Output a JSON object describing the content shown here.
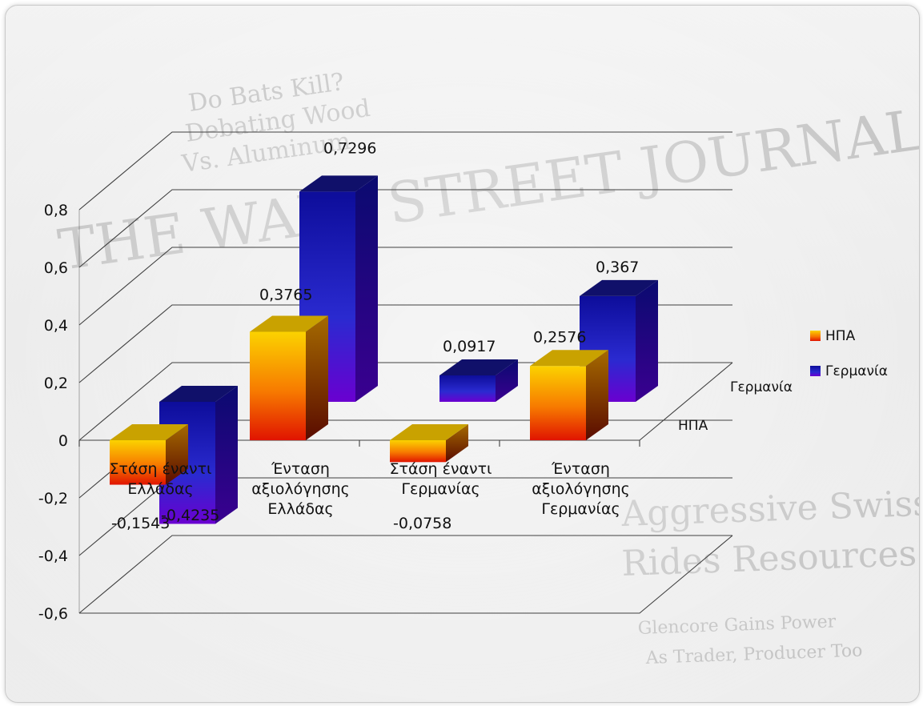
{
  "chart_data": {
    "type": "bar",
    "categories": [
      [
        "Στάση έναντι",
        "Ελλάδας"
      ],
      [
        "Ένταση",
        "αξιολόγησης",
        "Ελλάδας"
      ],
      [
        "Στάση έναντι",
        "Γερμανίας"
      ],
      [
        "Ένταση",
        "αξιολόγησης",
        "Γερμανίας"
      ]
    ],
    "series": [
      {
        "name": "ΗΠΑ",
        "values": [
          -0.1543,
          0.3765,
          -0.0758,
          0.2576
        ],
        "labels": [
          "-0,1543",
          "0,3765",
          "-0,0758",
          "0,2576"
        ],
        "color_top": "#f6d400",
        "color_bottom": "#e01800"
      },
      {
        "name": "Γερμανία",
        "values": [
          -0.4235,
          0.7296,
          0.0917,
          0.367
        ],
        "labels": [
          "-0,4235",
          "0,7296",
          "0,0917",
          "0,367"
        ],
        "color_top": "#1d1db8",
        "color_bottom": "#5a00c8"
      }
    ],
    "depth_axis": [
      "Γερμανία",
      "ΗΠΑ"
    ],
    "y_ticks": [
      "-0,6",
      "-0,4",
      "-0,2",
      "0",
      "0,2",
      "0,4",
      "0,6",
      "0,8"
    ],
    "ylim": [
      -0.6,
      0.8
    ],
    "legend_position": "right",
    "grid": true,
    "style": "3d-column"
  },
  "background_text": [
    "Do Bats Kill?",
    "Debating Wood",
    "Vs. Aluminum",
    "THE WALL STREET JOURNAL.",
    "Aggressive Swiss G",
    "Rides Resources",
    "Glencore Gains Power",
    "As Trader, Producer Too"
  ]
}
